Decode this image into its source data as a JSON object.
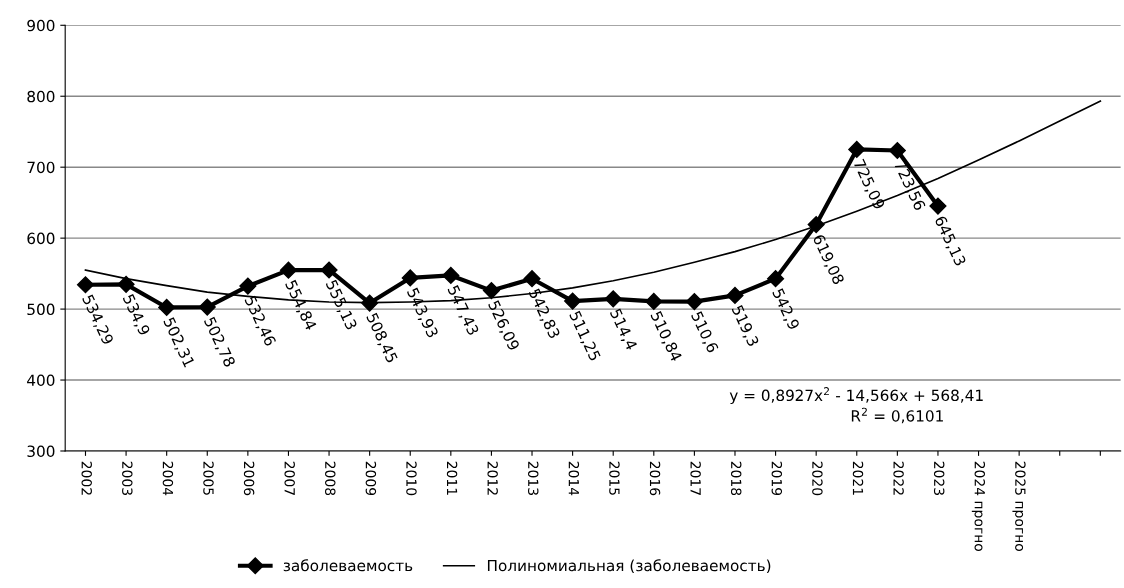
{
  "chart_data": {
    "type": "line",
    "categories": [
      "2002",
      "2003",
      "2004",
      "2005",
      "2006",
      "2007",
      "2008",
      "2009",
      "2010",
      "2011",
      "2012",
      "2013",
      "2014",
      "2015",
      "2016",
      "2017",
      "2018",
      "2019",
      "2020",
      "2021",
      "2022",
      "2023",
      "2024 прогно",
      "2025 прогно",
      null,
      null
    ],
    "series": [
      {
        "name": "заболеваемость",
        "color": "#000000",
        "marker": "diamond",
        "line_style": "solid",
        "values": [
          534.29,
          534.9,
          502.31,
          502.78,
          532.46,
          554.84,
          555.13,
          508.45,
          543.93,
          547.43,
          526.09,
          542.83,
          511.25,
          514.4,
          510.84,
          510.6,
          519.3,
          542.9,
          619.08,
          725.09,
          723.56,
          645.13,
          null,
          null,
          null,
          null
        ],
        "value_labels": [
          "534,29",
          "534,9",
          "502,31",
          "502,78",
          "532,46",
          "554,84",
          "555,13",
          "508,45",
          "543,93",
          "547,43",
          "526,09",
          "542,83",
          "511,25",
          "514,4",
          "510,84",
          "510,6",
          "519,3",
          "542,9",
          "619,08",
          "725,09",
          "723,56",
          "645,13",
          null,
          null,
          null,
          null
        ]
      },
      {
        "name": "Полиномиальная (заболеваемость)",
        "color": "#000000",
        "marker": "none",
        "line_style": "solid",
        "values": [
          555,
          543,
          533,
          524,
          518,
          513,
          510,
          509,
          510,
          512,
          516,
          522,
          530,
          540,
          552,
          566,
          581,
          598,
          617,
          638,
          660,
          684,
          710,
          737,
          765,
          793
        ]
      }
    ],
    "ylim": [
      300,
      900
    ],
    "yticks": [
      300,
      400,
      500,
      600,
      700,
      800,
      900
    ],
    "grid": "y",
    "legend": "bottom",
    "annotations": [
      "y = 0,8927x$^{2}$ - 14,566x + 568,41",
      "R$^{2}$ = 0,6101"
    ]
  }
}
